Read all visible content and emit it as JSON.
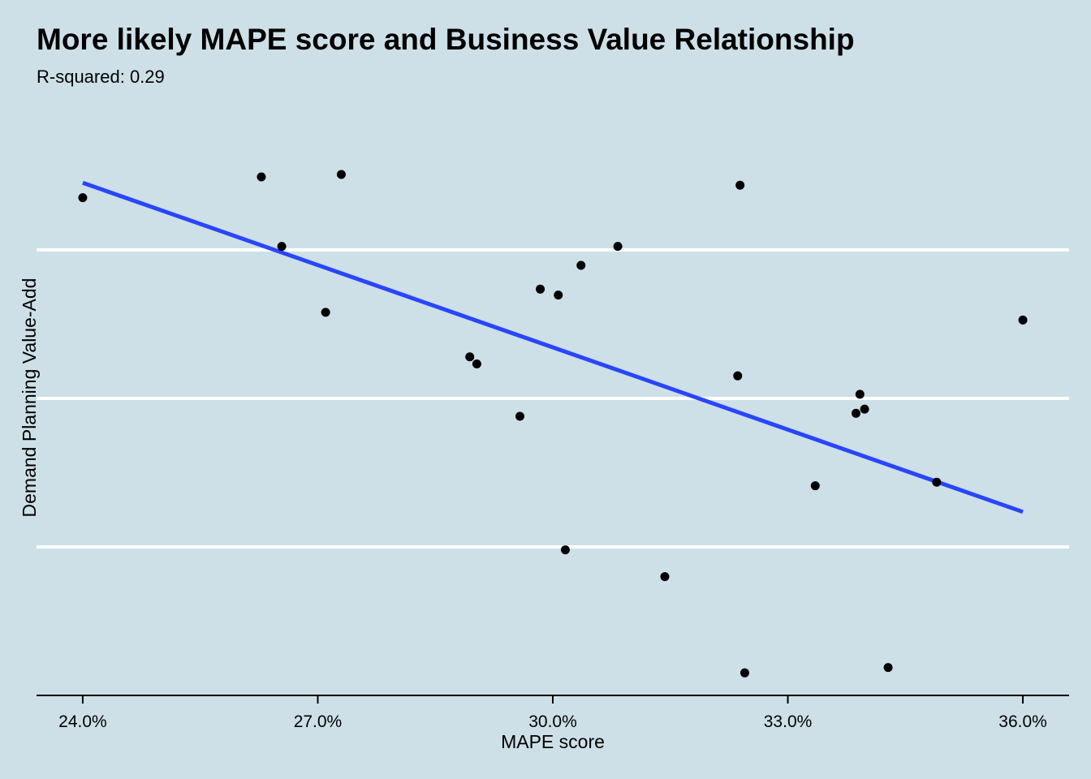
{
  "chart_data": {
    "type": "scatter",
    "title": "More likely MAPE score and Business Value Relationship",
    "subtitle": "R-squared: 0.29",
    "xlabel": "MAPE score",
    "ylabel": "Demand Planning Value-Add",
    "x_ticks": [
      {
        "value": 0.24,
        "label": "24.0%"
      },
      {
        "value": 0.27,
        "label": "27.0%"
      },
      {
        "value": 0.3,
        "label": "30.0%"
      },
      {
        "value": 0.33,
        "label": "33.0%"
      },
      {
        "value": 0.36,
        "label": "36.0%"
      }
    ],
    "xlim": [
      0.2341,
      0.3659
    ],
    "ylim": [
      0,
      1
    ],
    "y_gridlines": [
      0.25,
      0.5,
      0.75
    ],
    "grid": "horizontal",
    "points": [
      {
        "x": 0.24,
        "y": 0.838
      },
      {
        "x": 0.2628,
        "y": 0.873
      },
      {
        "x": 0.2654,
        "y": 0.756
      },
      {
        "x": 0.271,
        "y": 0.645
      },
      {
        "x": 0.273,
        "y": 0.877
      },
      {
        "x": 0.2894,
        "y": 0.57
      },
      {
        "x": 0.2903,
        "y": 0.558
      },
      {
        "x": 0.2958,
        "y": 0.47
      },
      {
        "x": 0.2984,
        "y": 0.684
      },
      {
        "x": 0.3007,
        "y": 0.674
      },
      {
        "x": 0.3016,
        "y": 0.245
      },
      {
        "x": 0.3036,
        "y": 0.724
      },
      {
        "x": 0.3083,
        "y": 0.756
      },
      {
        "x": 0.3143,
        "y": 0.2
      },
      {
        "x": 0.3236,
        "y": 0.538
      },
      {
        "x": 0.3239,
        "y": 0.859
      },
      {
        "x": 0.3245,
        "y": 0.038
      },
      {
        "x": 0.3335,
        "y": 0.353
      },
      {
        "x": 0.3387,
        "y": 0.475
      },
      {
        "x": 0.3392,
        "y": 0.507
      },
      {
        "x": 0.3398,
        "y": 0.482
      },
      {
        "x": 0.3428,
        "y": 0.047
      },
      {
        "x": 0.349,
        "y": 0.359
      },
      {
        "x": 0.36,
        "y": 0.632
      }
    ],
    "trend_line": {
      "x": [
        0.24,
        0.36
      ],
      "y": [
        0.863,
        0.309
      ]
    },
    "colors": {
      "background": "#cde0e7",
      "points": "#000000",
      "trend_line": "#2a45ff",
      "grid": "#ffffff",
      "axis": "#000000"
    }
  }
}
